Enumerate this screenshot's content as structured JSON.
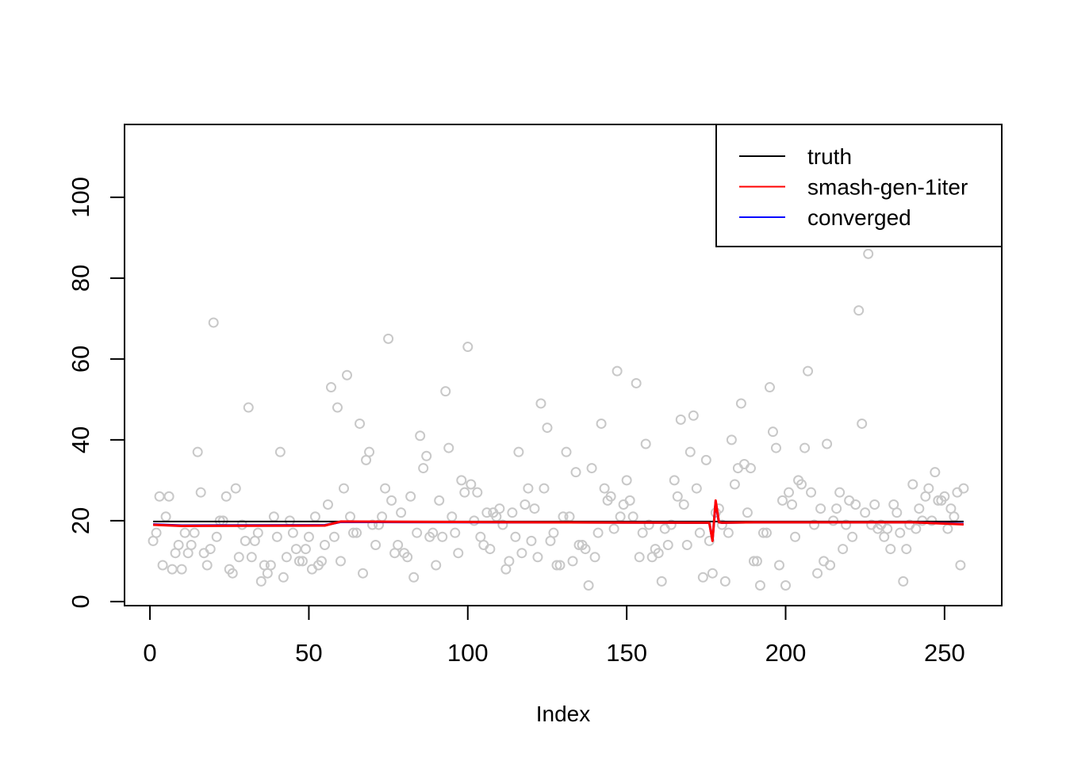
{
  "chart_data": {
    "type": "scatter",
    "title": "",
    "xlabel": "Index",
    "ylabel": "",
    "xlim": [
      -8,
      268
    ],
    "ylim": [
      -1,
      118
    ],
    "xticks": [
      0,
      50,
      100,
      150,
      200,
      250
    ],
    "yticks": [
      0,
      20,
      40,
      60,
      80,
      100
    ],
    "grid": false,
    "legend_position": "top-right",
    "point_color": "#c8c8c8",
    "points": {
      "name": "",
      "x": [
        1,
        2,
        3,
        4,
        5,
        6,
        7,
        8,
        9,
        10,
        11,
        12,
        13,
        14,
        15,
        16,
        17,
        18,
        19,
        20,
        21,
        22,
        23,
        24,
        25,
        26,
        27,
        28,
        29,
        30,
        31,
        32,
        33,
        34,
        35,
        36,
        37,
        38,
        39,
        40,
        41,
        42,
        43,
        44,
        45,
        46,
        47,
        48,
        49,
        50,
        51,
        52,
        53,
        54,
        55,
        56,
        57,
        58,
        59,
        60,
        61,
        62,
        63,
        64,
        65,
        66,
        67,
        68,
        69,
        70,
        71,
        72,
        73,
        74,
        75,
        76,
        77,
        78,
        79,
        80,
        81,
        82,
        83,
        84,
        85,
        86,
        87,
        88,
        89,
        90,
        91,
        92,
        93,
        94,
        95,
        96,
        97,
        98,
        99,
        100,
        101,
        102,
        103,
        104,
        105,
        106,
        107,
        108,
        109,
        110,
        111,
        112,
        113,
        114,
        115,
        116,
        117,
        118,
        119,
        120,
        121,
        122,
        123,
        124,
        125,
        126,
        127,
        128,
        129,
        130,
        131,
        132,
        133,
        134,
        135,
        136,
        137,
        138,
        139,
        140,
        141,
        142,
        143,
        144,
        145,
        146,
        147,
        148,
        149,
        150,
        151,
        152,
        153,
        154,
        155,
        156,
        157,
        158,
        159,
        160,
        161,
        162,
        163,
        164,
        165,
        166,
        167,
        168,
        169,
        170,
        171,
        172,
        173,
        174,
        175,
        176,
        177,
        178,
        179,
        180,
        181,
        182,
        183,
        184,
        185,
        186,
        187,
        188,
        189,
        190,
        191,
        192,
        193,
        194,
        195,
        196,
        197,
        198,
        199,
        200,
        201,
        202,
        203,
        204,
        205,
        206,
        207,
        208,
        209,
        210,
        211,
        212,
        213,
        214,
        215,
        216,
        217,
        218,
        219,
        220,
        221,
        222,
        223,
        224,
        225,
        226,
        227,
        228,
        229,
        230,
        231,
        232,
        233,
        234,
        235,
        236,
        237,
        238,
        239,
        240,
        241,
        242,
        243,
        244,
        245,
        246,
        247,
        248,
        249,
        250,
        251,
        252,
        253,
        254,
        255,
        256
      ],
      "y": [
        15,
        17,
        26,
        9,
        21,
        26,
        8,
        12,
        14,
        8,
        17,
        12,
        14,
        17,
        37,
        27,
        12,
        9,
        13,
        69,
        16,
        20,
        20,
        26,
        8,
        7,
        28,
        11,
        19,
        15,
        48,
        11,
        15,
        17,
        5,
        9,
        7,
        9,
        21,
        16,
        37,
        6,
        11,
        20,
        17,
        13,
        10,
        10,
        13,
        16,
        8,
        21,
        9,
        10,
        14,
        24,
        53,
        16,
        48,
        10,
        28,
        56,
        21,
        17,
        17,
        44,
        7,
        35,
        37,
        19,
        14,
        19,
        21,
        28,
        65,
        25,
        12,
        14,
        22,
        12,
        11,
        26,
        6,
        17,
        41,
        33,
        36,
        16,
        17,
        9,
        25,
        16,
        52,
        38,
        21,
        17,
        12,
        30,
        27,
        63,
        29,
        20,
        27,
        16,
        14,
        22,
        13,
        22,
        21,
        23,
        19,
        8,
        10,
        22,
        16,
        37,
        12,
        24,
        28,
        15,
        23,
        11,
        49,
        28,
        43,
        15,
        17,
        9,
        9,
        21,
        37,
        21,
        10,
        32,
        14,
        14,
        13,
        4,
        33,
        11,
        17,
        44,
        28,
        25,
        26,
        18,
        57,
        21,
        24,
        30,
        25,
        21,
        54,
        11,
        17,
        39,
        19,
        11,
        13,
        12,
        5,
        18,
        14,
        19,
        30,
        26,
        45,
        24,
        14,
        37,
        46,
        28,
        17,
        6,
        35,
        15,
        7,
        22,
        23,
        19,
        5,
        17,
        40,
        29,
        33,
        49,
        34,
        22,
        33,
        10,
        10,
        4,
        17,
        17,
        53,
        42,
        38,
        9,
        25,
        4,
        27,
        24,
        16,
        30,
        29,
        38,
        57,
        27,
        19,
        7,
        23,
        10,
        39,
        9,
        20,
        23,
        27,
        13,
        19,
        25,
        16,
        24,
        72,
        44,
        22,
        86,
        19,
        24,
        18,
        19,
        16,
        18,
        13,
        24,
        22,
        17,
        5,
        13,
        19,
        29,
        18,
        23,
        20,
        26,
        28,
        20,
        32,
        25,
        25,
        26,
        18,
        23,
        21,
        27,
        9,
        28
      ]
    },
    "series": [
      {
        "name": "truth",
        "color": "#000000",
        "x": [
          1,
          256
        ],
        "y": [
          19.8,
          19.8
        ]
      },
      {
        "name": "smash-gen-1iter",
        "color": "#ff0000",
        "x": [
          1,
          10,
          55,
          60,
          120,
          176,
          177,
          178,
          179,
          180,
          190,
          240,
          256
        ],
        "y": [
          19.0,
          18.7,
          18.8,
          19.8,
          19.6,
          19.5,
          15.0,
          25.0,
          19.6,
          19.5,
          19.6,
          19.6,
          19.1
        ]
      },
      {
        "name": "converged",
        "color": "#0000ff",
        "x": [
          1,
          10,
          55,
          60,
          120,
          176,
          177,
          178,
          179,
          180,
          190,
          240,
          256
        ],
        "y": [
          19.1,
          18.8,
          18.9,
          19.7,
          19.6,
          19.5,
          15.2,
          24.6,
          19.6,
          19.5,
          19.6,
          19.6,
          19.2
        ]
      }
    ]
  }
}
